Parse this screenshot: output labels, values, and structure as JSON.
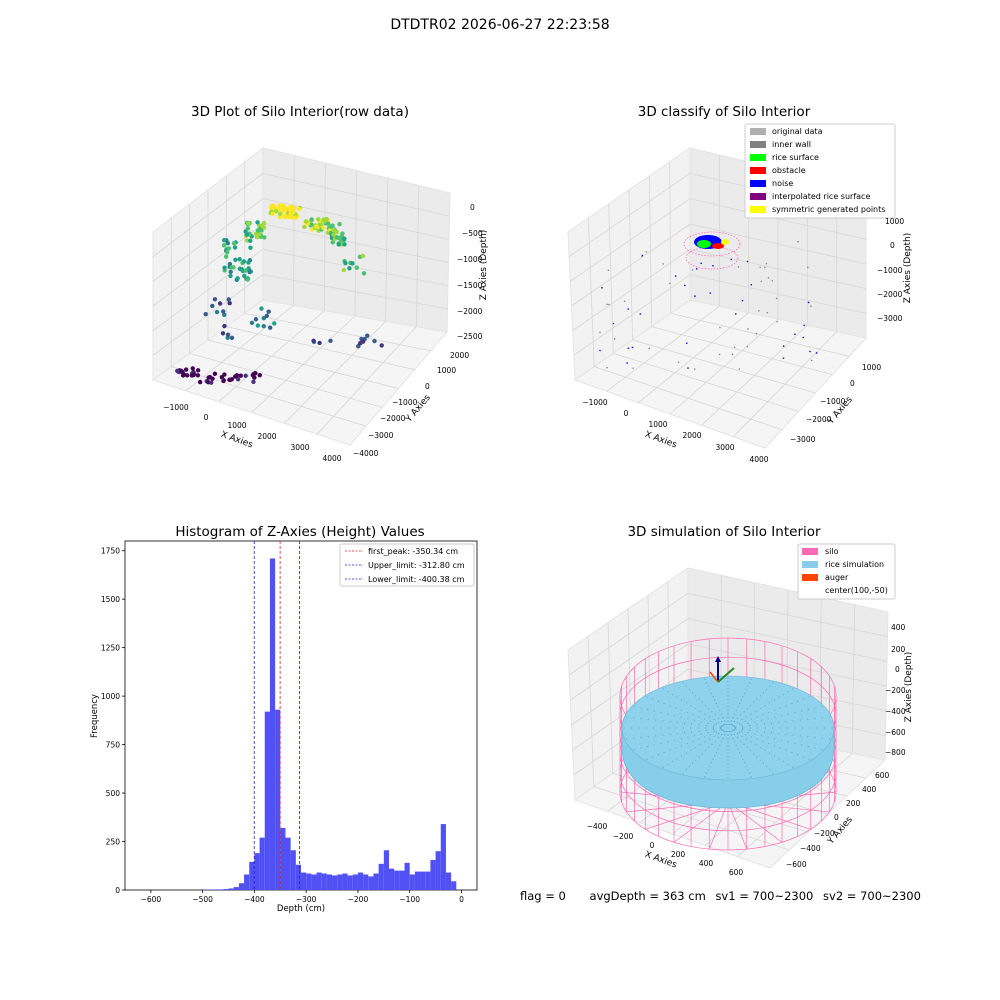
{
  "figure": {
    "title": "DTDTR02 2026-06-27 22:23:58",
    "footer": {
      "flag": "flag = 0",
      "avg_depth": "avgDepth = 363 cm",
      "sv1": "sv1 = 700~2300",
      "sv2": "sv2 = 700~2300"
    }
  },
  "colors": {
    "hist_bar": "#5050f5",
    "peak_line": "#e02020",
    "limit_line": "#2020d0",
    "silo": "#ff69b4",
    "rice_simulation": "#87ceeb",
    "auger": "#ff4500",
    "original_data": "#b0b0b0",
    "inner_wall": "#808080",
    "rice_surface": "#00ff00",
    "obstacle": "#ff0000",
    "noise": "#0000ff",
    "interpolated_rice_surface": "#800080",
    "symmetric_generated_points": "#ffff00"
  },
  "chart_data": [
    {
      "type": "scatter",
      "title": "3D Plot of Silo Interior(row data)",
      "xlabel": "X Axies",
      "ylabel": "Y Axies",
      "zlabel": "Z Axies (Depth)",
      "x_ticks": [
        "−1000",
        "0",
        "1000",
        "2000",
        "3000",
        "4000"
      ],
      "y_ticks": [
        "2000",
        "1000",
        "0",
        "−1000",
        "−2000",
        "−3000",
        "−4000"
      ],
      "z_ticks": [
        "0",
        "−500",
        "−1000",
        "−1500",
        "−2000",
        "−2500"
      ],
      "colormap": "viridis"
    },
    {
      "type": "scatter",
      "title": "3D classify of Silo Interior",
      "xlabel": "X Axies",
      "ylabel": "Y Axies",
      "zlabel": "Z Axies (Depth)",
      "x_ticks": [
        "−1000",
        "0",
        "1000",
        "2000",
        "3000",
        "4000"
      ],
      "y_ticks": [
        "1000",
        "0",
        "−1000",
        "−2000",
        "−3000"
      ],
      "z_ticks": [
        "1000",
        "0",
        "−1000",
        "−2000",
        "−3000"
      ],
      "legend": [
        "original data",
        "inner wall",
        "rice surface",
        "obstacle",
        "noise",
        "interpolated rice surface",
        "symmetric generated points"
      ],
      "legend_position": "top-right"
    },
    {
      "type": "bar",
      "title": "Histogram of Z-Axies (Height) Values",
      "xlabel": "Depth (cm)",
      "ylabel": "Frequency",
      "xlim": [
        -650,
        30
      ],
      "ylim": [
        0,
        1800
      ],
      "x_ticks": [
        -600,
        -500,
        -400,
        -300,
        -200,
        -100,
        0
      ],
      "x_tick_labels": [
        "−600",
        "−500",
        "−400",
        "−300",
        "−200",
        "−100",
        "0"
      ],
      "y_ticks": [
        0,
        250,
        500,
        750,
        1000,
        1250,
        1500,
        1750
      ],
      "bins": [
        {
          "x0": -500,
          "x1": -490,
          "v": 2
        },
        {
          "x0": -490,
          "x1": -480,
          "v": 2
        },
        {
          "x0": -480,
          "x1": -470,
          "v": 3
        },
        {
          "x0": -470,
          "x1": -460,
          "v": 3
        },
        {
          "x0": -460,
          "x1": -450,
          "v": 5
        },
        {
          "x0": -450,
          "x1": -440,
          "v": 8
        },
        {
          "x0": -440,
          "x1": -430,
          "v": 15
        },
        {
          "x0": -430,
          "x1": -420,
          "v": 35
        },
        {
          "x0": -420,
          "x1": -410,
          "v": 80
        },
        {
          "x0": -410,
          "x1": -400,
          "v": 145
        },
        {
          "x0": -400,
          "x1": -390,
          "v": 190
        },
        {
          "x0": -390,
          "x1": -380,
          "v": 270
        },
        {
          "x0": -380,
          "x1": -370,
          "v": 920
        },
        {
          "x0": -370,
          "x1": -360,
          "v": 1710
        },
        {
          "x0": -360,
          "x1": -350,
          "v": 930
        },
        {
          "x0": -350,
          "x1": -340,
          "v": 320
        },
        {
          "x0": -340,
          "x1": -330,
          "v": 270
        },
        {
          "x0": -330,
          "x1": -320,
          "v": 205
        },
        {
          "x0": -320,
          "x1": -310,
          "v": 130
        },
        {
          "x0": -310,
          "x1": -300,
          "v": 90
        },
        {
          "x0": -300,
          "x1": -290,
          "v": 85
        },
        {
          "x0": -290,
          "x1": -280,
          "v": 80
        },
        {
          "x0": -280,
          "x1": -270,
          "v": 90
        },
        {
          "x0": -270,
          "x1": -260,
          "v": 85
        },
        {
          "x0": -260,
          "x1": -250,
          "v": 80
        },
        {
          "x0": -250,
          "x1": -240,
          "v": 75
        },
        {
          "x0": -240,
          "x1": -230,
          "v": 80
        },
        {
          "x0": -230,
          "x1": -220,
          "v": 85
        },
        {
          "x0": -220,
          "x1": -210,
          "v": 75
        },
        {
          "x0": -210,
          "x1": -200,
          "v": 80
        },
        {
          "x0": -200,
          "x1": -190,
          "v": 90
        },
        {
          "x0": -190,
          "x1": -180,
          "v": 80
        },
        {
          "x0": -180,
          "x1": -170,
          "v": 70
        },
        {
          "x0": -170,
          "x1": -160,
          "v": 85
        },
        {
          "x0": -160,
          "x1": -150,
          "v": 135
        },
        {
          "x0": -150,
          "x1": -140,
          "v": 205
        },
        {
          "x0": -140,
          "x1": -130,
          "v": 110
        },
        {
          "x0": -130,
          "x1": -120,
          "v": 100
        },
        {
          "x0": -120,
          "x1": -110,
          "v": 100
        },
        {
          "x0": -110,
          "x1": -100,
          "v": 140
        },
        {
          "x0": -100,
          "x1": -90,
          "v": 80
        },
        {
          "x0": -90,
          "x1": -80,
          "v": 95
        },
        {
          "x0": -80,
          "x1": -70,
          "v": 95
        },
        {
          "x0": -70,
          "x1": -60,
          "v": 95
        },
        {
          "x0": -60,
          "x1": -50,
          "v": 155
        },
        {
          "x0": -50,
          "x1": -40,
          "v": 200
        },
        {
          "x0": -40,
          "x1": -30,
          "v": 340
        },
        {
          "x0": -30,
          "x1": -20,
          "v": 90
        },
        {
          "x0": -20,
          "x1": -10,
          "v": 45
        }
      ],
      "lines": [
        {
          "label": "first_peak: -350.34 cm",
          "x": -350.34,
          "color": "#e02020"
        },
        {
          "label": "Upper_limit: -312.80 cm",
          "x": -312.8,
          "color": "#2020d0"
        },
        {
          "label": "Lower_limit: -400.38 cm",
          "x": -400.38,
          "color": "#2020d0"
        }
      ],
      "legend_position": "top-right"
    },
    {
      "type": "scatter",
      "title": "3D simulation of Silo Interior",
      "xlabel": "X Axies",
      "ylabel": "Y Axies",
      "zlabel": "Z Axies (Depth)",
      "x_ticks": [
        "−400",
        "−200",
        "0",
        "200",
        "400",
        "600"
      ],
      "y_ticks": [
        "600",
        "400",
        "200",
        "0",
        "−200",
        "−400",
        "−600"
      ],
      "z_ticks": [
        "400",
        "200",
        "0",
        "−200",
        "−400",
        "−600",
        "−800"
      ],
      "legend": [
        "silo",
        "rice simulation",
        "auger",
        "center(100,-50)"
      ],
      "legend_position": "top-right"
    }
  ]
}
